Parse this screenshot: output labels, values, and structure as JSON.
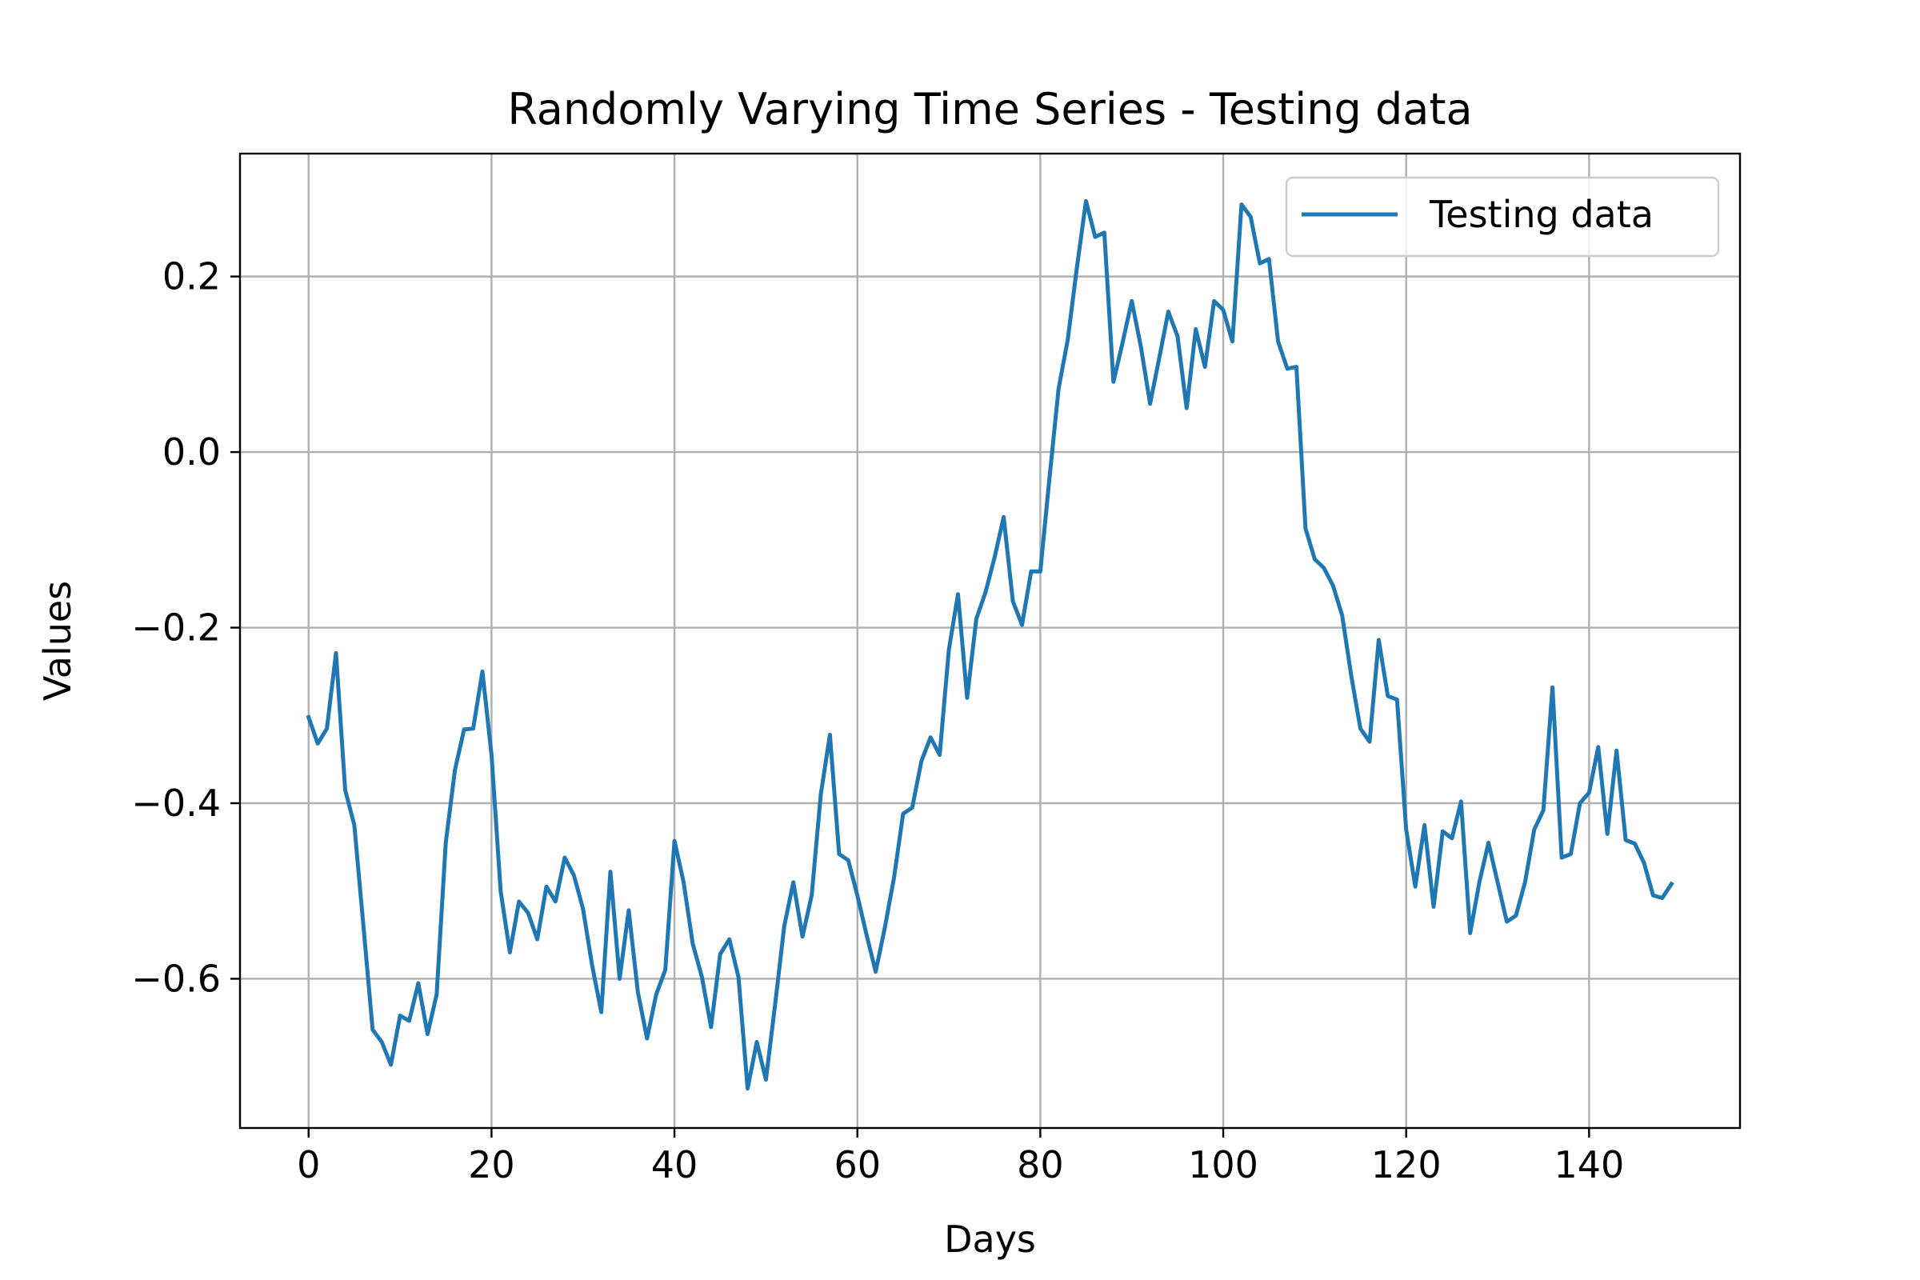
{
  "chart_data": {
    "type": "line",
    "title": "Randomly Varying Time Series - Testing data",
    "xlabel": "Days",
    "ylabel": "Values",
    "xlim": [
      -7.5,
      156.5
    ],
    "ylim": [
      -0.77,
      0.34
    ],
    "grid": true,
    "legend_position": "top-right",
    "x_ticks": [
      0,
      20,
      40,
      60,
      80,
      100,
      120,
      140
    ],
    "x_tick_labels": [
      "0",
      "20",
      "40",
      "60",
      "80",
      "100",
      "120",
      "140"
    ],
    "y_ticks": [
      -0.6,
      -0.4,
      -0.2,
      0.0,
      0.2
    ],
    "y_tick_labels": [
      "−0.6",
      "−0.4",
      "−0.2",
      "0.0",
      "0.2"
    ],
    "series": [
      {
        "name": "Testing data",
        "color": "#1f77b4",
        "x": [
          0,
          1,
          2,
          3,
          4,
          5,
          6,
          7,
          8,
          9,
          10,
          11,
          12,
          13,
          14,
          15,
          16,
          17,
          18,
          19,
          20,
          21,
          22,
          23,
          24,
          25,
          26,
          27,
          28,
          29,
          30,
          31,
          32,
          33,
          34,
          35,
          36,
          37,
          38,
          39,
          40,
          41,
          42,
          43,
          44,
          45,
          46,
          47,
          48,
          49,
          50,
          51,
          52,
          53,
          54,
          55,
          56,
          57,
          58,
          59,
          60,
          61,
          62,
          63,
          64,
          65,
          66,
          67,
          68,
          69,
          70,
          71,
          72,
          73,
          74,
          75,
          76,
          77,
          78,
          79,
          80,
          81,
          82,
          83,
          84,
          85,
          86,
          87,
          88,
          89,
          90,
          91,
          92,
          93,
          94,
          95,
          96,
          97,
          98,
          99,
          100,
          101,
          102,
          103,
          104,
          105,
          106,
          107,
          108,
          109,
          110,
          111,
          112,
          113,
          114,
          115,
          116,
          117,
          118,
          119,
          120,
          121,
          122,
          123,
          124,
          125,
          126,
          127,
          128,
          129,
          130,
          131,
          132,
          133,
          134,
          135,
          136,
          137,
          138,
          139,
          140,
          141,
          142,
          143,
          144,
          145,
          146,
          147,
          148,
          149
        ],
        "values": [
          -0.302,
          -0.332,
          -0.315,
          -0.229,
          -0.385,
          -0.425,
          -0.54,
          -0.658,
          -0.672,
          -0.698,
          -0.642,
          -0.648,
          -0.605,
          -0.663,
          -0.618,
          -0.445,
          -0.362,
          -0.316,
          -0.315,
          -0.25,
          -0.345,
          -0.5,
          -0.57,
          -0.512,
          -0.525,
          -0.555,
          -0.495,
          -0.512,
          -0.462,
          -0.482,
          -0.52,
          -0.585,
          -0.638,
          -0.478,
          -0.6,
          -0.522,
          -0.615,
          -0.668,
          -0.618,
          -0.59,
          -0.443,
          -0.49,
          -0.56,
          -0.598,
          -0.655,
          -0.572,
          -0.555,
          -0.598,
          -0.725,
          -0.672,
          -0.715,
          -0.63,
          -0.54,
          -0.49,
          -0.552,
          -0.505,
          -0.39,
          -0.322,
          -0.458,
          -0.465,
          -0.505,
          -0.55,
          -0.592,
          -0.542,
          -0.485,
          -0.412,
          -0.405,
          -0.352,
          -0.325,
          -0.345,
          -0.225,
          -0.162,
          -0.28,
          -0.19,
          -0.16,
          -0.12,
          -0.074,
          -0.17,
          -0.197,
          -0.136,
          -0.136,
          -0.03,
          0.072,
          0.128,
          0.21,
          0.286,
          0.245,
          0.25,
          0.08,
          0.125,
          0.172,
          0.12,
          0.055,
          0.107,
          0.16,
          0.132,
          0.05,
          0.14,
          0.097,
          0.172,
          0.162,
          0.126,
          0.282,
          0.268,
          0.215,
          0.22,
          0.126,
          0.095,
          0.097,
          -0.087,
          -0.122,
          -0.132,
          -0.152,
          -0.186,
          -0.255,
          -0.315,
          -0.33,
          -0.214,
          -0.278,
          -0.282,
          -0.43,
          -0.495,
          -0.425,
          -0.518,
          -0.432,
          -0.44,
          -0.398,
          -0.548,
          -0.49,
          -0.445,
          -0.49,
          -0.535,
          -0.528,
          -0.49,
          -0.43,
          -0.408,
          -0.268,
          -0.462,
          -0.458,
          -0.4,
          -0.388,
          -0.336,
          -0.435,
          -0.34,
          -0.442,
          -0.446,
          -0.468,
          -0.505,
          -0.508,
          -0.492
        ]
      }
    ]
  }
}
